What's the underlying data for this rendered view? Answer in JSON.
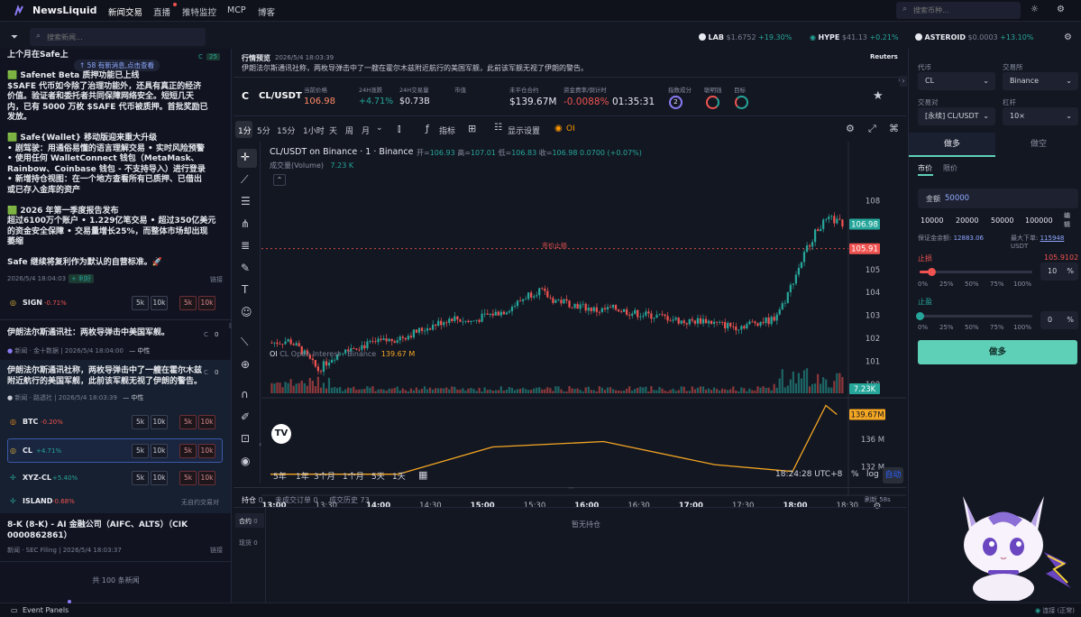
{
  "brand": {
    "name": "NewsLiquid"
  },
  "nav": [
    "新闻交易",
    "直播",
    "推特监控",
    "MCP",
    "博客"
  ],
  "search": {
    "placeholder": "搜索币种..."
  },
  "news_search": {
    "placeholder": "搜索新闻..."
  },
  "ticker": [
    {
      "sym": "LAB",
      "price": "$1.6752",
      "chg": "+19.30%"
    },
    {
      "sym": "HYPE",
      "price": "$41.13",
      "chg": "+0.21%"
    },
    {
      "sym": "ASTEROID",
      "price": "$0.0003",
      "chg": "+13.10%"
    }
  ],
  "left": {
    "top_title": "上个月在Safe上",
    "new_msgs": "58 有新消息,点击查看",
    "badge_c": "C",
    "badge_count": "25",
    "safe_lines": [
      "🟩 Safenet Beta 质押功能已上线",
      "$SAFE 代币如今除了治理功能外，还具有真正的经济",
      "价值。验证者和委托者共同保障网络安全。短短几天",
      "内，已有 5000 万枚 $SAFE 代币被质押。首批奖励已",
      "发放。",
      "",
      "🟩 Safe{Wallet} 移动版迎来重大升级",
      "• 剧驾驶：用通俗易懂的语言理解交易 • 实时风险预警",
      "• 使用任何 WalletConnect 钱包（MetaMask、",
      "Rainbow、Coinbase 钱包 - 不支持导入）进行登录",
      "• 新增持仓视图：在一个地方查看所有已质押、已借出",
      "或已存入金库的资产",
      "",
      "🟩 2026 年第一季度报告发布",
      "超过6100万个账户 • 1.229亿笔交易 • 超过350亿美元",
      "的资金安全保障 • 交易量增长25%，而整体市场却出现",
      "萎缩",
      "",
      "Safe 继续将复利作为默认的自营标准。🚀"
    ],
    "safe_time": "2026/5/4 18:04:03",
    "safe_tag": "+ 利好",
    "safe_link": "链接",
    "sign": {
      "sym": "SIGN",
      "chg": "-0.71%"
    },
    "news2_title": "伊朗法尔斯通讯社：两枚导弹击中美国军舰。",
    "news2_source": "新闻 · 金十数据",
    "news2_time": "2026/5/4 18:04:00",
    "news2_tag": "— 中性",
    "news2_badge_c": "C",
    "news2_badge_count": "0",
    "news3_lines": [
      "伊朗法尔斯通讯社称，两枚导弹击中了一艘在霍尔木兹",
      "附近航行的美国军舰，此前该军舰无视了伊朗的警告。"
    ],
    "news3_source": "新闻 · 路透社",
    "news3_time": "2026/5/4 18:03:39",
    "news3_tag": "— 中性",
    "news3_badge_c": "C",
    "news3_badge_count": "0",
    "syms": [
      {
        "sym": "BTC",
        "chg": "-0.20%"
      },
      {
        "sym": "CL",
        "chg": "+4.71%"
      },
      {
        "sym": "XYZ-CL",
        "chg": "+5.40%"
      },
      {
        "sym": "ISLAND",
        "chg": "-0.68%"
      }
    ],
    "island_note": "无自约交易对",
    "k5": "5k",
    "k10": "10k",
    "news4_lines": [
      "8-K (8-K) - AI 金融公司（AIFC、ALTS）（CIK",
      "0000862861）"
    ],
    "news4_source": "新闻 · SEC Filing",
    "news4_time": "2026/5/4 18:03:37",
    "news4_link": "链接",
    "total": "共 100 条新闻",
    "event_panels": "Event Panels"
  },
  "preview": {
    "label": "行情预览",
    "time": "2026/5/4 18:03:39",
    "source": "Reuters",
    "text": "伊朗法尔斯通讯社称，两枚导弹击中了一艘在霍尔木兹附近航行的美国军舰，此前该军舰无视了伊朗的警告。"
  },
  "market": {
    "sym": "CL/USDT",
    "cur_label": "当前价格",
    "cur_price": "106.98",
    "chg_label": "24H涨跌",
    "chg": "+4.71%",
    "vol_label": "24H交易量",
    "vol": "$0.73B",
    "mcap_label": "市值",
    "mcap": "",
    "oi_label": "未平仓合约",
    "oi": "$139.67M",
    "fund_label": "资金费率/倒计时",
    "fund": "-0.0088%",
    "countdown": "01:35:31",
    "idx_label": "指数成分",
    "idx_val": "2",
    "smart_label": "聪明钱",
    "target_label": "目标"
  },
  "toolbar": {
    "intervals": [
      "1分",
      "5分",
      "15分",
      "1小时",
      "天",
      "周",
      "月"
    ],
    "indicator": "指标",
    "display": "显示设置",
    "oi": "OI"
  },
  "chart_data": [
    {
      "type": "candlestick",
      "title": "CL/USDT on Binance · 1 · Binance",
      "ohlc": {
        "open": "106.93",
        "high": "107.01",
        "low": "106.83",
        "close": "106.98",
        "chg": "0.0700 (+0.07%)"
      },
      "volume_label": "成交量(Volume)",
      "volume_value": "7.23 K",
      "y_ticks": [
        "108",
        "107",
        "106",
        "105",
        "104",
        "103",
        "102",
        "101",
        "100"
      ],
      "ylim": [
        99.6,
        108.3
      ],
      "last_price": "106.98",
      "stop_line_price": "105.91",
      "stop_line_label": "市价止损",
      "x_ticks": [
        "13:00",
        "13:30",
        "14:00",
        "14:30",
        "15:00",
        "15:30",
        "16:00",
        "16:30",
        "17:00",
        "17:30",
        "18:00",
        "18:30"
      ],
      "close_path": [
        [
          0,
          101.8
        ],
        [
          0.03,
          101.9
        ],
        [
          0.05,
          101.5
        ],
        [
          0.07,
          100.9
        ],
        [
          0.08,
          100.6
        ],
        [
          0.1,
          101.1
        ],
        [
          0.13,
          101.6
        ],
        [
          0.16,
          101.7
        ],
        [
          0.2,
          101.9
        ],
        [
          0.23,
          102.1
        ],
        [
          0.26,
          102.4
        ],
        [
          0.28,
          102.6
        ],
        [
          0.31,
          102.9
        ],
        [
          0.34,
          102.7
        ],
        [
          0.37,
          103.0
        ],
        [
          0.4,
          103.2
        ],
        [
          0.42,
          103.5
        ],
        [
          0.44,
          103.9
        ],
        [
          0.46,
          104.1
        ],
        [
          0.48,
          103.7
        ],
        [
          0.5,
          103.6
        ],
        [
          0.53,
          103.4
        ],
        [
          0.56,
          103.2
        ],
        [
          0.59,
          103.3
        ],
        [
          0.62,
          103.1
        ],
        [
          0.65,
          103.0
        ],
        [
          0.68,
          102.9
        ],
        [
          0.71,
          102.7
        ],
        [
          0.74,
          102.8
        ],
        [
          0.77,
          102.6
        ],
        [
          0.8,
          102.5
        ],
        [
          0.83,
          102.7
        ],
        [
          0.86,
          102.8
        ],
        [
          0.88,
          103.6
        ],
        [
          0.9,
          104.8
        ],
        [
          0.92,
          106.0
        ],
        [
          0.94,
          106.9
        ],
        [
          0.96,
          107.2
        ],
        [
          0.98,
          106.98
        ]
      ]
    },
    {
      "type": "line",
      "title": "CL Open Interest · Binance",
      "indicator": "OI",
      "current": "139.67 M",
      "y_ticks": [
        "136 M",
        "132 M"
      ],
      "ylim": [
        129.8,
        141.2
      ],
      "values": [
        [
          0,
          130.9
        ],
        [
          0.23,
          130.9
        ],
        [
          0.4,
          134.9
        ],
        [
          0.6,
          135.7
        ],
        [
          0.8,
          132.3
        ],
        [
          0.94,
          131.3
        ],
        [
          1.0,
          141.0
        ],
        [
          1.02,
          139.67
        ]
      ]
    }
  ],
  "range_bar": {
    "ranges": [
      "5年",
      "1年",
      "3个月",
      "1个月",
      "5天",
      "1天"
    ],
    "time": "18:24:28 UTC+8",
    "pct": "%",
    "log": "log",
    "auto": "自动"
  },
  "bottom": {
    "tabs": [
      {
        "label": "持仓",
        "count": "0"
      },
      {
        "label": "未成交订单",
        "count": "0"
      },
      {
        "label": "成交历史",
        "count": "73"
      }
    ],
    "refresh": "刷新 58s",
    "side_items": [
      {
        "label": "合约",
        "count": "0"
      },
      {
        "label": "现货",
        "count": "0"
      }
    ],
    "empty": "暂无持仓"
  },
  "trade": {
    "coin_label": "代币",
    "coin": "CL",
    "exch_label": "交易所",
    "exch": "Binance",
    "pair_label": "交易对",
    "pair": "[永续] CL/USDT",
    "lev_label": "杠杆",
    "lev": "10×",
    "long": "做多",
    "short": "做空",
    "market": "市价",
    "limit": "限价",
    "amount_label": "金额",
    "amount": "50000",
    "presets": [
      "10000",
      "20000",
      "50000",
      "100000"
    ],
    "edit": "编辑",
    "margin_label": "保证金余额:",
    "margin": "12883.06",
    "max_label": "最大下单:",
    "max": "115948",
    "max_unit": "USDT",
    "sl_label": "止损",
    "sl_price": "105.9102",
    "sl_pct": "10",
    "sl_fill": 0.1,
    "tp_label": "止盈",
    "tp_pct": "0",
    "tp_fill": 0,
    "pct_ticks": [
      "0%",
      "25%",
      "50%",
      "75%",
      "100%"
    ],
    "pct_sign": "%",
    "submit": "做多"
  },
  "status": {
    "text": "连接 (正常)"
  }
}
